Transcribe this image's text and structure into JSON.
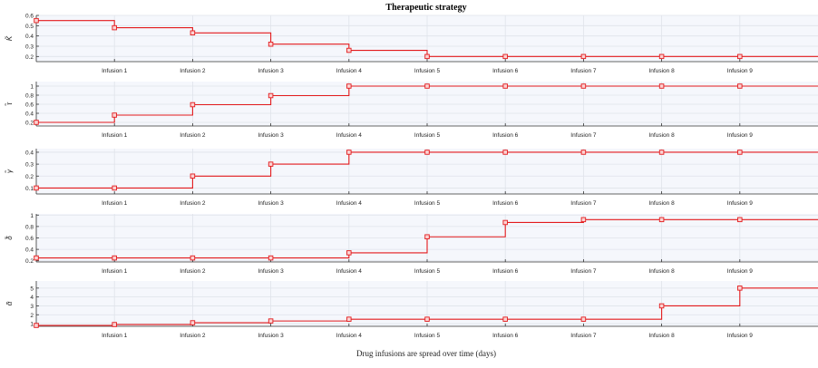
{
  "chart_data": {
    "type": "line",
    "title": "Therapeutic strategy",
    "xlabel": "Drug infusions are spread over time (days)",
    "x_ticks": [
      "Infusion 1",
      "Infusion 2",
      "Infusion 3",
      "Infusion 4",
      "Infusion 5",
      "Infusion 6",
      "Infusion 7",
      "Infusion 8",
      "Infusion 9"
    ],
    "x_range": [
      0,
      10
    ],
    "grid": true,
    "step": true,
    "series_color": "#e31a1c",
    "panels": [
      {
        "ylabel": "K̃",
        "ylim": [
          0.15,
          0.6
        ],
        "yticks": [
          0.2,
          0.3,
          0.4,
          0.5,
          0.6
        ],
        "yticklabels": [
          "0.2",
          "0.3",
          "0.4",
          "0.5",
          "0.6"
        ],
        "x": [
          0,
          1,
          2,
          3,
          4,
          5,
          6,
          7,
          8,
          9
        ],
        "values": [
          0.55,
          0.48,
          0.43,
          0.32,
          0.26,
          0.2,
          0.2,
          0.2,
          0.2,
          0.2
        ]
      },
      {
        "ylabel": "τ̃",
        "ylim": [
          0.12,
          1.1
        ],
        "yticks": [
          0.2,
          0.4,
          0.6,
          0.8,
          1.0
        ],
        "yticklabels": [
          "0.2",
          "0.4",
          "0.6",
          "0.8",
          "1"
        ],
        "x": [
          0,
          1,
          2,
          3,
          4,
          5,
          6,
          7,
          8,
          9
        ],
        "values": [
          0.2,
          0.36,
          0.59,
          0.79,
          1.0,
          1.0,
          1.0,
          1.0,
          1.0,
          1.0
        ]
      },
      {
        "ylabel": "γ̃",
        "ylim": [
          0.05,
          0.43
        ],
        "yticks": [
          0.1,
          0.2,
          0.3,
          0.4
        ],
        "yticklabels": [
          "0.1",
          "0.2",
          "0.3",
          "0.4"
        ],
        "x": [
          0,
          1,
          2,
          3,
          4,
          5,
          6,
          7,
          8,
          9
        ],
        "values": [
          0.1,
          0.1,
          0.2,
          0.3,
          0.4,
          0.4,
          0.4,
          0.4,
          0.4,
          0.4
        ]
      },
      {
        "ylabel": "δ̃",
        "ylim": [
          0.18,
          1.02
        ],
        "yticks": [
          0.2,
          0.4,
          0.6,
          0.8,
          1.0
        ],
        "yticklabels": [
          "0.2",
          "0.4",
          "0.6",
          "0.8",
          "1"
        ],
        "x": [
          0,
          1,
          2,
          3,
          4,
          5,
          6,
          7,
          8,
          9
        ],
        "values": [
          0.25,
          0.25,
          0.25,
          0.25,
          0.34,
          0.62,
          0.87,
          0.92,
          0.92,
          0.92
        ]
      },
      {
        "ylabel": "ᾶ",
        "ylim": [
          0.7,
          5.8
        ],
        "yticks": [
          1,
          2,
          3,
          4,
          5
        ],
        "yticklabels": [
          "1",
          "2",
          "3",
          "4",
          "5"
        ],
        "x": [
          0,
          1,
          2,
          3,
          4,
          5,
          6,
          7,
          8,
          9
        ],
        "values": [
          0.8,
          0.9,
          1.1,
          1.3,
          1.5,
          1.5,
          1.5,
          1.5,
          3.0,
          5.0
        ]
      }
    ]
  }
}
